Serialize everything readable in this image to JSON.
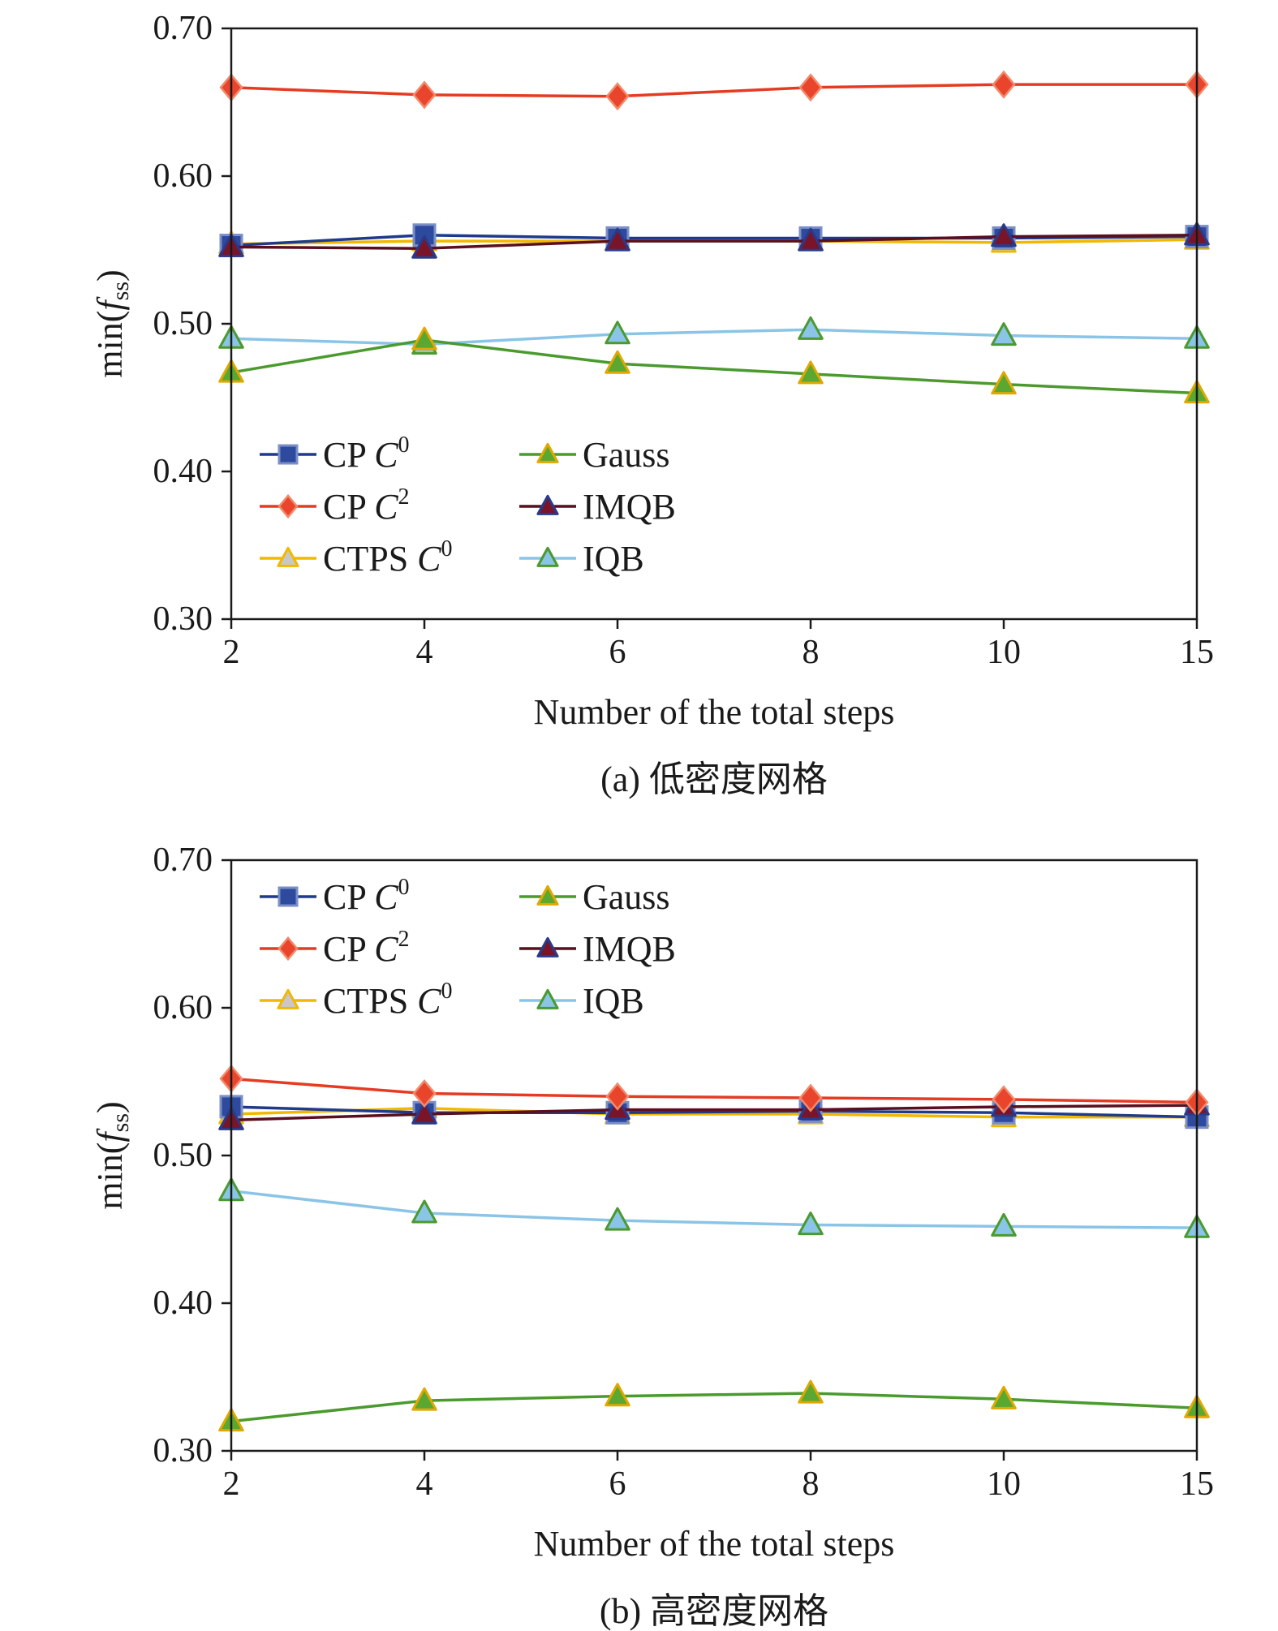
{
  "charts": [
    {
      "caption": "(a) 低密度网格",
      "xlabel": "Number of the total steps",
      "ylabel_main": "min(",
      "ylabel_var": "f",
      "ylabel_sub": "ss",
      "ylabel_end": ")",
      "ytick_labels": [
        "0.70",
        "0.60",
        "0.50",
        "0.40",
        "0.30"
      ],
      "legend_placement": "lower-left"
    },
    {
      "caption": "(b) 高密度网格",
      "xlabel": "Number of the total steps",
      "ylabel_main": "min(",
      "ylabel_var": "f",
      "ylabel_sub": "ss",
      "ylabel_end": ")",
      "ytick_labels": [
        "0.70",
        "0.60",
        "0.50",
        "0.40",
        "0.30"
      ],
      "legend_placement": "upper-left"
    }
  ],
  "legend": [
    {
      "key": "cp_c0",
      "prefix": "CP ",
      "var": "C",
      "sup": "0",
      "text": "",
      "marker": "square",
      "line": "#1f3a8a",
      "fill": "#2e4a9e",
      "edge": "#7b8fc7"
    },
    {
      "key": "cp_c2",
      "prefix": "CP ",
      "var": "C",
      "sup": "2",
      "text": "",
      "marker": "diamond",
      "line": "#e53b23",
      "fill": "#e8452c",
      "edge": "#f28a6b"
    },
    {
      "key": "ctps_c0",
      "prefix": "CTPS ",
      "var": "C",
      "sup": "0",
      "text": "",
      "marker": "triangle",
      "line": "#f2b800",
      "fill": "#c8c8c8",
      "edge": "#f2b800"
    },
    {
      "key": "gauss",
      "prefix": "",
      "var": "",
      "sup": "",
      "text": "Gauss",
      "marker": "triangle",
      "line": "#4a9a2e",
      "fill": "#5aa832",
      "edge": "#e0a800"
    },
    {
      "key": "imqb",
      "prefix": "",
      "var": "",
      "sup": "",
      "text": "IMQB",
      "marker": "triangle",
      "line": "#5a0f1f",
      "fill": "#7a1428",
      "edge": "#2a3a8a"
    },
    {
      "key": "iqb",
      "prefix": "",
      "var": "",
      "sup": "",
      "text": "IQB",
      "marker": "triangle",
      "line": "#8ac4e6",
      "fill": "#8ac4e6",
      "edge": "#4a9a2e"
    }
  ],
  "chart_data": [
    {
      "type": "line",
      "title": "(a) 低密度网格",
      "xlabel": "Number of the total steps",
      "ylabel": "min(f_ss)",
      "categories": [
        "2",
        "4",
        "6",
        "8",
        "10",
        "15"
      ],
      "ylim": [
        0.3,
        0.7
      ],
      "yticks": [
        0.3,
        0.4,
        0.5,
        0.6,
        0.7
      ],
      "series": [
        {
          "name": "CP C0",
          "values": [
            0.553,
            0.56,
            0.558,
            0.558,
            0.558,
            0.559
          ]
        },
        {
          "name": "CP C2",
          "values": [
            0.66,
            0.655,
            0.654,
            0.66,
            0.662,
            0.662
          ]
        },
        {
          "name": "CTPS C0",
          "values": [
            0.554,
            0.556,
            0.556,
            0.556,
            0.555,
            0.557
          ]
        },
        {
          "name": "Gauss",
          "values": [
            0.467,
            0.489,
            0.473,
            0.466,
            0.459,
            0.453
          ]
        },
        {
          "name": "IMQB",
          "values": [
            0.552,
            0.551,
            0.556,
            0.556,
            0.559,
            0.56
          ]
        },
        {
          "name": "IQB",
          "values": [
            0.49,
            0.486,
            0.493,
            0.496,
            0.492,
            0.49
          ]
        }
      ]
    },
    {
      "type": "line",
      "title": "(b) 高密度网格",
      "xlabel": "Number of the total steps",
      "ylabel": "min(f_ss)",
      "categories": [
        "2",
        "4",
        "6",
        "8",
        "10",
        "15"
      ],
      "ylim": [
        0.3,
        0.7
      ],
      "yticks": [
        0.3,
        0.4,
        0.5,
        0.6,
        0.7
      ],
      "series": [
        {
          "name": "CP C0",
          "values": [
            0.533,
            0.529,
            0.529,
            0.53,
            0.529,
            0.526
          ]
        },
        {
          "name": "CP C2",
          "values": [
            0.552,
            0.542,
            0.54,
            0.539,
            0.538,
            0.536
          ]
        },
        {
          "name": "CTPS C0",
          "values": [
            0.528,
            0.532,
            0.528,
            0.528,
            0.526,
            0.526
          ]
        },
        {
          "name": "Gauss",
          "values": [
            0.32,
            0.334,
            0.337,
            0.339,
            0.335,
            0.329
          ]
        },
        {
          "name": "IMQB",
          "values": [
            0.524,
            0.528,
            0.531,
            0.531,
            0.533,
            0.534
          ]
        },
        {
          "name": "IQB",
          "values": [
            0.476,
            0.461,
            0.456,
            0.453,
            0.452,
            0.451
          ]
        }
      ]
    }
  ]
}
